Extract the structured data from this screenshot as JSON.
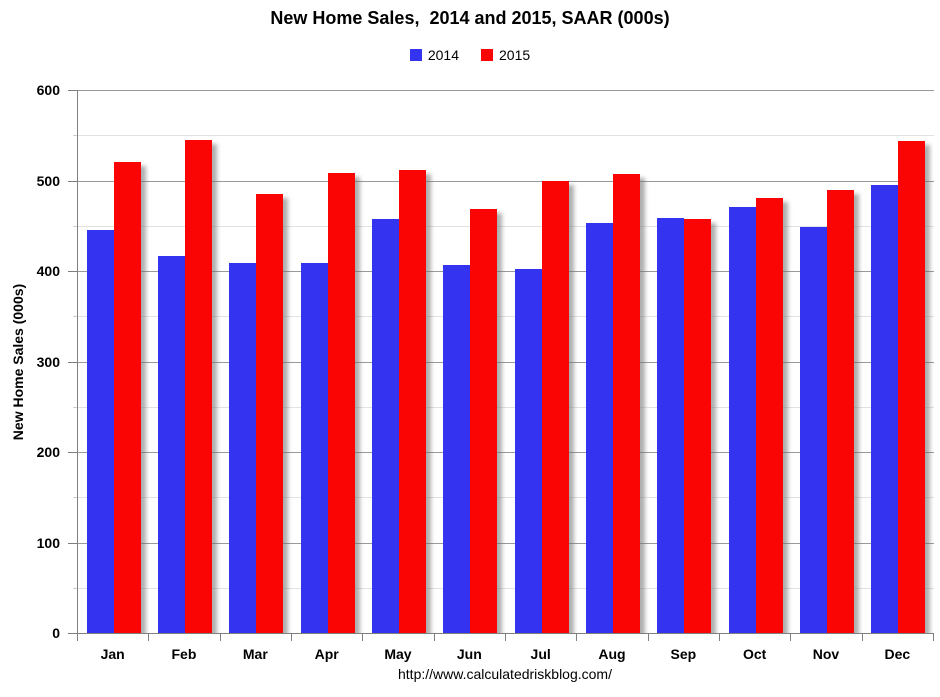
{
  "footer": {
    "url": "http://www.calculatedriskblog.com/"
  },
  "chart_data": {
    "type": "bar",
    "title": "New Home Sales,  2014 and 2015, SAAR (000s)",
    "categories": [
      "Jan",
      "Feb",
      "Mar",
      "Apr",
      "May",
      "Jun",
      "Jul",
      "Aug",
      "Sep",
      "Oct",
      "Nov",
      "Dec"
    ],
    "series": [
      {
        "name": "2014",
        "color": "#3333f0",
        "values": [
          445,
          417,
          409,
          409,
          457,
          407,
          402,
          453,
          459,
          471,
          449,
          495
        ]
      },
      {
        "name": "2015",
        "color": "#fb0404",
        "values": [
          521,
          545,
          485,
          508,
          512,
          469,
          500,
          507,
          457,
          481,
          490,
          544
        ]
      }
    ],
    "xlabel": "",
    "ylabel": "New Home Sales (000s)",
    "ylim": [
      0,
      600
    ],
    "yticks": [
      0,
      100,
      200,
      300,
      400,
      500,
      600
    ],
    "grid": {
      "major": 100,
      "minor": 50,
      "shown": true
    },
    "legend_position": "top-center",
    "bar_shadow": true
  }
}
